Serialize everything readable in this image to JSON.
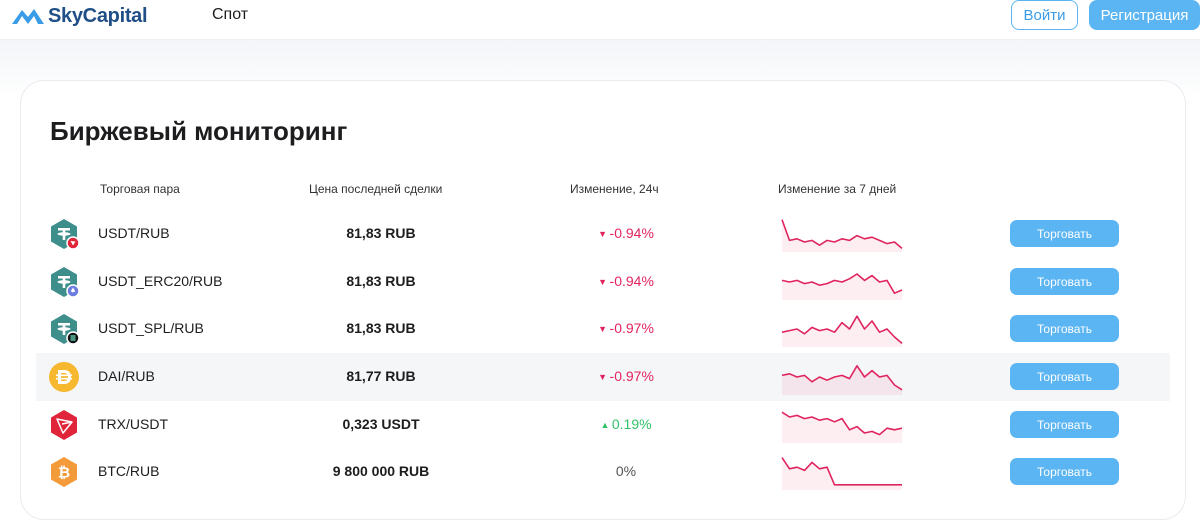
{
  "header": {
    "brand": "SkyCapital",
    "nav_spot": "Спот",
    "login_label": "Войти",
    "register_label": "Регистрация"
  },
  "main": {
    "title": "Биржевый мониторинг",
    "columns": [
      "Торговая пара",
      "Цена последней сделки",
      "Изменение, 24ч",
      "Изменение за 7 дней"
    ],
    "trade_label": "Торговать",
    "rows": [
      {
        "pair": "USDT/RUB",
        "price": "81,83 RUB",
        "change": "-0.94%",
        "dir": "neg",
        "icon": "usdt-trc20-icon",
        "spark": [
          0.95,
          0.3,
          0.35,
          0.25,
          0.3,
          0.15,
          0.3,
          0.25,
          0.35,
          0.3,
          0.45,
          0.35,
          0.4,
          0.3,
          0.2,
          0.25,
          0.05
        ]
      },
      {
        "pair": "USDT_ERC20/RUB",
        "price": "81,83 RUB",
        "change": "-0.94%",
        "dir": "neg",
        "icon": "usdt-erc20-icon",
        "spark": [
          0.55,
          0.5,
          0.55,
          0.45,
          0.5,
          0.4,
          0.45,
          0.55,
          0.5,
          0.6,
          0.75,
          0.55,
          0.7,
          0.5,
          0.55,
          0.15,
          0.25
        ]
      },
      {
        "pair": "USDT_SPL/RUB",
        "price": "81,83 RUB",
        "change": "-0.97%",
        "dir": "neg",
        "icon": "usdt-spl-icon",
        "spark": [
          0.4,
          0.45,
          0.5,
          0.35,
          0.55,
          0.45,
          0.5,
          0.4,
          0.7,
          0.5,
          0.9,
          0.5,
          0.75,
          0.4,
          0.5,
          0.25,
          0.05
        ]
      },
      {
        "pair": "DAI/RUB",
        "price": "81,77 RUB",
        "change": "-0.97%",
        "dir": "neg",
        "icon": "dai-icon",
        "spark": [
          0.55,
          0.6,
          0.5,
          0.55,
          0.35,
          0.5,
          0.4,
          0.5,
          0.55,
          0.45,
          0.85,
          0.5,
          0.7,
          0.5,
          0.55,
          0.25,
          0.1
        ]
      },
      {
        "pair": "TRX/USDT",
        "price": "0,323 USDT",
        "change": "0.19%",
        "dir": "pos",
        "icon": "trx-icon",
        "spark": [
          0.9,
          0.75,
          0.8,
          0.7,
          0.75,
          0.65,
          0.7,
          0.6,
          0.7,
          0.35,
          0.45,
          0.25,
          0.3,
          0.2,
          0.4,
          0.35,
          0.4
        ]
      },
      {
        "pair": "BTC/RUB",
        "price": "9 800 000 RUB",
        "change": "0%",
        "dir": "zero",
        "icon": "btc-icon",
        "spark": [
          0.95,
          0.6,
          0.65,
          0.55,
          0.8,
          0.6,
          0.65,
          0.1,
          0.1,
          0.1,
          0.1,
          0.1,
          0.1,
          0.1,
          0.1,
          0.1,
          0.1
        ]
      }
    ]
  },
  "colors": {
    "accent": "#5bb5f2",
    "negative": "#e0245e",
    "positive": "#33c26a",
    "spark": "#e0245e"
  }
}
